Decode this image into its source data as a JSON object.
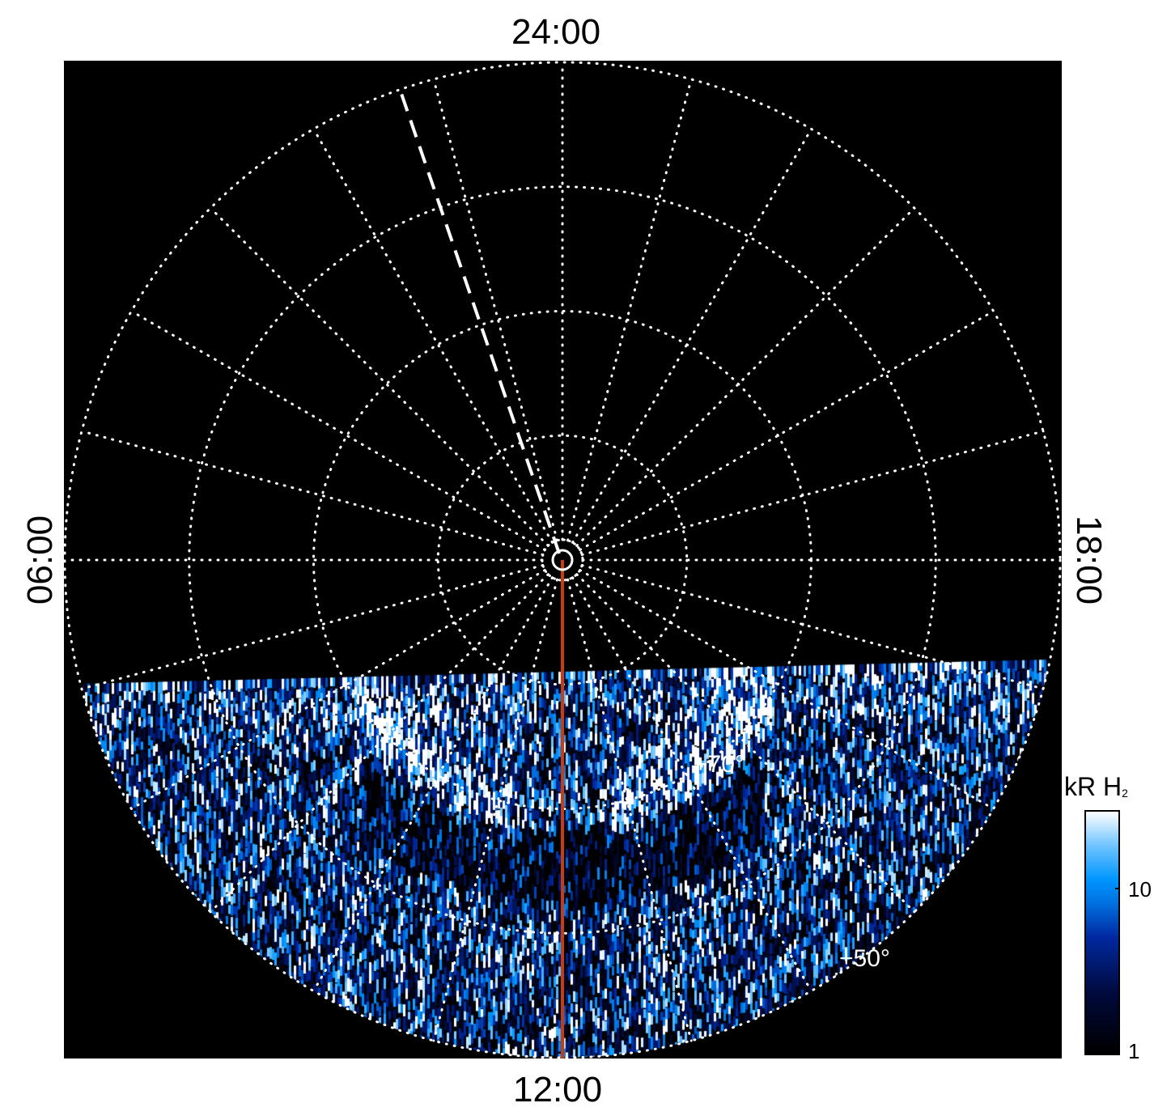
{
  "chart_data": {
    "type": "heatmap",
    "projection": "polar",
    "local_time_labels": {
      "top": "24:00",
      "left": "06:00",
      "bottom": "12:00",
      "right": "18:00"
    },
    "latitude_grid_deg": [
      80,
      70,
      60,
      50
    ],
    "local_time_grid_hours": 1,
    "latitude_labels": [
      "+70°",
      "+50°"
    ],
    "grid": "dotted",
    "colorbar": {
      "label": "kR H",
      "label_subscript": "2",
      "scale": "log",
      "range": [
        1,
        30
      ],
      "ticks": [
        1,
        10
      ],
      "tick_labels": [
        "1",
        "10"
      ]
    },
    "colors": {
      "background": "#000000",
      "grid": "#ffffff",
      "meridian_line": "#c83c14",
      "dashed_line": "#ffffff"
    },
    "coverage": "dayside (lower half of the map)"
  }
}
